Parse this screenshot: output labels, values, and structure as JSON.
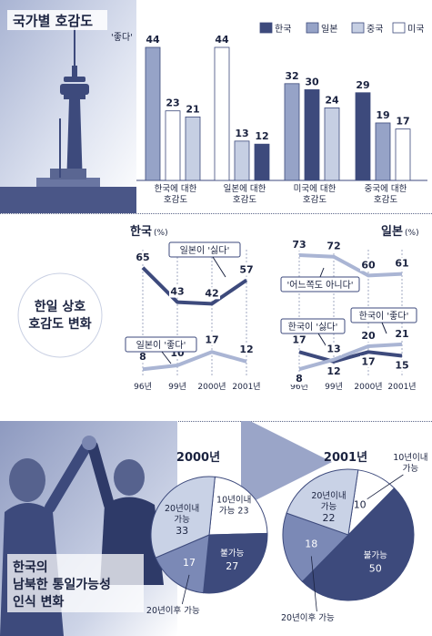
{
  "palette": {
    "korea": "#3d4a7c",
    "japan": "#96a3c7",
    "china": "#c6cfe3",
    "usa": "#ffffff",
    "line_dark": "#3d4a7c",
    "line_light": "#aab5d4",
    "pie_dark": "#3d4a7c",
    "pie_mid": "#7b89b6",
    "pie_light": "#c9d2e6",
    "pie_white": "#ffffff",
    "text": "#1b2340"
  },
  "section1": {
    "title": "국가별 호감도",
    "chart_data": {
      "type": "bar",
      "unit_label": "'좋다'",
      "legend": [
        "한국",
        "일본",
        "중국",
        "미국"
      ],
      "legend_placement": "top-right",
      "groups": [
        {
          "label_line1": "한국에 대한",
          "label_line2": "호감도",
          "values": {
            "일본": 44,
            "미국": 23,
            "중국": 21
          }
        },
        {
          "label_line1": "일본에 대한",
          "label_line2": "호감도",
          "values": {
            "미국": 44,
            "중국": 13,
            "한국": 12
          }
        },
        {
          "label_line1": "미국에 대한",
          "label_line2": "호감도",
          "values": {
            "일본": 32,
            "한국": 30,
            "중국": 24
          }
        },
        {
          "label_line1": "중국에 대한",
          "label_line2": "호감도",
          "values": {
            "한국": 29,
            "일본": 19,
            "미국": 17
          }
        }
      ]
    }
  },
  "section2": {
    "title_line1": "한일 상호",
    "title_line2": "호감도 변화",
    "chart_data": [
      {
        "type": "line",
        "title": "한국",
        "unit": "(%)",
        "x": [
          "96년",
          "99년",
          "2000년",
          "2001년"
        ],
        "series": [
          {
            "name": "일본이 '싫다'",
            "values": [
              65,
              43,
              42,
              57
            ]
          },
          {
            "name": "일본이 '좋다'",
            "values": [
              8,
              10,
              17,
              12
            ]
          }
        ]
      },
      {
        "type": "line",
        "title": "일본",
        "unit": "(%)",
        "x": [
          "96년",
          "99년",
          "2000년",
          "2001년"
        ],
        "series": [
          {
            "name": "'어느쪽도 아니다'",
            "values": [
              73,
              72,
              60,
              61
            ]
          },
          {
            "name": "한국이 '싫다'",
            "values": [
              17,
              12,
              17,
              15
            ]
          },
          {
            "name": "한국이 '좋다'",
            "values": [
              8,
              13,
              20,
              21
            ]
          }
        ]
      }
    ]
  },
  "section3": {
    "title_line1": "한국의",
    "title_line2": "남북한 통일가능성",
    "title_line3": "인식 변화",
    "chart_data": [
      {
        "type": "pie",
        "title": "2000년",
        "slices": [
          {
            "label_line1": "10년이내",
            "label_line2": "가능",
            "value": 23
          },
          {
            "label_line1": "불가능",
            "label_line2": "",
            "value": 27
          },
          {
            "label_line1": "20년이후 가능",
            "label_line2": "",
            "value": 17
          },
          {
            "label_line1": "20년이내",
            "label_line2": "가능",
            "value": 33
          }
        ]
      },
      {
        "type": "pie",
        "title": "2001년",
        "slices": [
          {
            "label_line1": "10년이내",
            "label_line2": "가능",
            "value": 10
          },
          {
            "label_line1": "불가능",
            "label_line2": "",
            "value": 50
          },
          {
            "label_line1": "20년이후 가능",
            "label_line2": "",
            "value": 18
          },
          {
            "label_line1": "20년이내",
            "label_line2": "가능",
            "value": 22
          }
        ]
      }
    ]
  }
}
